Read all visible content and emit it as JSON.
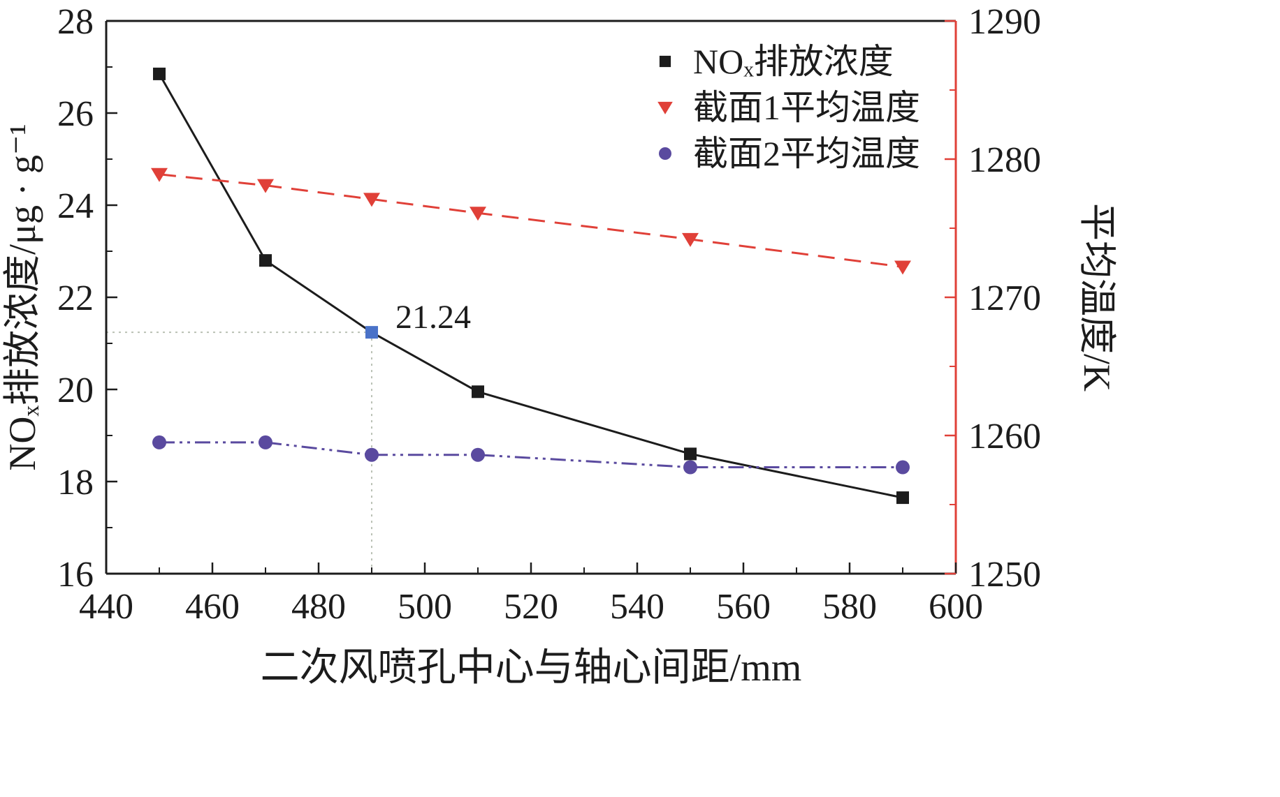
{
  "figure": {
    "background": "#ffffff"
  },
  "chart_data": {
    "type": "line",
    "xlabel": "二次风喷孔中心与轴心间距/mm",
    "ylabel_left": "NOₓ排放浓度/μg · g⁻¹",
    "ylabel_right": "平均温度/K",
    "xlim": [
      440,
      600
    ],
    "ylim_left": [
      16,
      28
    ],
    "ylim_right": [
      1250,
      1290
    ],
    "x_ticks": [
      440,
      460,
      480,
      500,
      520,
      540,
      560,
      580,
      600
    ],
    "x_minor_step": 10,
    "y_left_ticks": [
      16,
      18,
      20,
      22,
      24,
      26,
      28
    ],
    "y_left_minor_step": 1,
    "y_right_ticks": [
      1250,
      1260,
      1270,
      1280,
      1290
    ],
    "y_right_minor_step": 5,
    "x": [
      450,
      470,
      490,
      510,
      550,
      590
    ],
    "series": [
      {
        "name": "NOₓ排放浓度",
        "axis": "left",
        "marker": "square",
        "line": "solid",
        "color": "#1c1c1c",
        "values": [
          26.85,
          22.8,
          21.24,
          19.95,
          18.6,
          17.65
        ]
      },
      {
        "name": "截面1平均温度",
        "axis": "right",
        "marker": "triangle-down",
        "line": "dashed",
        "color": "#e04038",
        "values": [
          1278.9,
          1278.1,
          1277.1,
          1276.1,
          1274.2,
          1272.2
        ]
      },
      {
        "name": "截面2平均温度",
        "axis": "right",
        "marker": "circle",
        "line": "dashdot",
        "color": "#5a4a9f",
        "values": [
          1259.5,
          1259.5,
          1258.6,
          1258.6,
          1257.7,
          1257.7
        ]
      }
    ],
    "annotation": {
      "text": "21.24",
      "series": 0,
      "point_index": 2,
      "marker_color": "#4a72c8",
      "guide_color": "#b9c0b4"
    },
    "colors": {
      "axis": "#1c1c1c",
      "right_axis": "#e04038"
    },
    "legend_position": "top-right",
    "grid": false
  }
}
